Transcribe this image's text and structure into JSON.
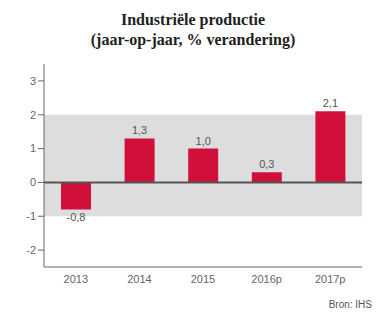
{
  "chart_data": {
    "type": "bar",
    "title": "Industriële productie",
    "subtitle": "(jaar-op-jaar, % verandering)",
    "source": "Bron: IHS",
    "categories": [
      "2013",
      "2014",
      "2015",
      "2016p",
      "2017p"
    ],
    "values": [
      -0.8,
      1.3,
      1.0,
      0.3,
      2.1
    ],
    "value_labels": [
      "-0,8",
      "1,3",
      "1,0",
      "0,3",
      "2,1"
    ],
    "data_labels": true,
    "color": "#d0103a",
    "ylim": [
      -2.5,
      3.5
    ],
    "yticks": [
      -2,
      -1,
      0,
      1,
      2,
      3
    ],
    "grid": false,
    "band": {
      "ymin": -1.0,
      "ymax": 2.0,
      "color": "#dddddd"
    },
    "zero_line": {
      "y": 0,
      "color": "#555555"
    }
  }
}
